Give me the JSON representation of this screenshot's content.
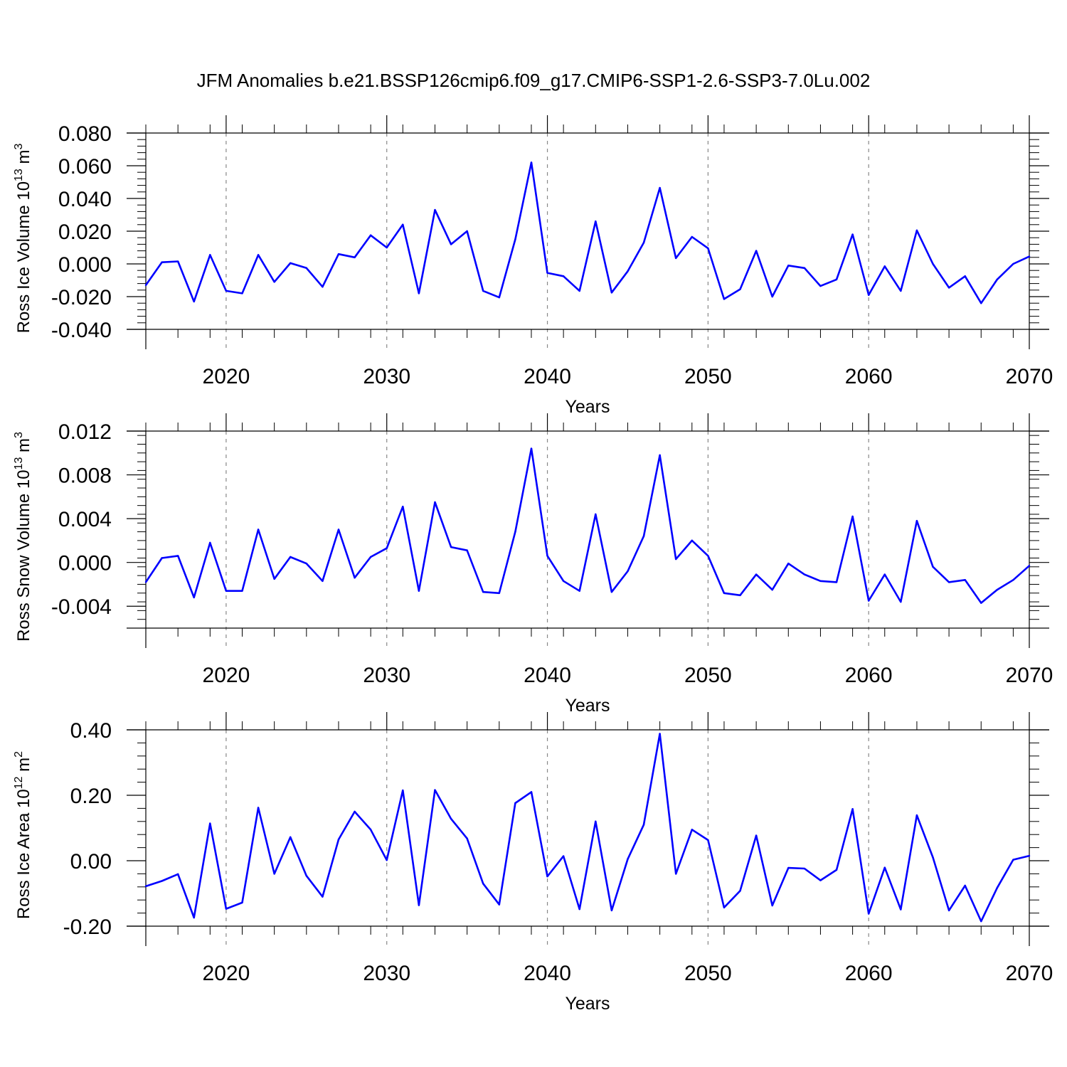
{
  "title": "JFM Anomalies b.e21.BSSP126cmip6.f09_g17.CMIP6-SSP1-2.6-SSP3-7.0Lu.002",
  "colors": {
    "series": "#0000ff",
    "axis": "#000000",
    "grid": "#888888"
  },
  "chart_data": [
    {
      "type": "line",
      "ylabel": "Ross Ice Volume 10",
      "ylabel_exp": "13",
      "ylabel_unit": " m",
      "ylabel_unit_exp": "3",
      "xlabel": "Years",
      "xlim": [
        2015,
        2070
      ],
      "ylim": [
        -0.04,
        0.08
      ],
      "yticks": [
        -0.04,
        -0.02,
        0.0,
        0.02,
        0.04,
        0.06,
        0.08
      ],
      "ytick_labels": [
        "-0.040",
        "-0.020",
        "0.000",
        "0.020",
        "0.040",
        "0.060",
        "0.080"
      ],
      "xticks": [
        2020,
        2030,
        2040,
        2050,
        2060,
        2070
      ],
      "xtick_labels": [
        "2020",
        "2030",
        "2040",
        "2050",
        "2060",
        "2070"
      ],
      "grid": "vertical dashed at major x ticks",
      "x": [
        2015,
        2016,
        2017,
        2018,
        2019,
        2020,
        2021,
        2022,
        2023,
        2024,
        2025,
        2026,
        2027,
        2028,
        2029,
        2030,
        2031,
        2032,
        2033,
        2034,
        2035,
        2036,
        2037,
        2038,
        2039,
        2040,
        2041,
        2042,
        2043,
        2044,
        2045,
        2046,
        2047,
        2048,
        2049,
        2050,
        2051,
        2052,
        2053,
        2054,
        2055,
        2056,
        2057,
        2058,
        2059,
        2060,
        2061,
        2062,
        2063,
        2064,
        2065,
        2066,
        2067,
        2068,
        2069,
        2070
      ],
      "values": [
        -0.013,
        0.001,
        0.0015,
        -0.023,
        0.0055,
        -0.0165,
        -0.018,
        0.0055,
        -0.011,
        0.0005,
        -0.0025,
        -0.014,
        0.006,
        0.004,
        0.0175,
        0.01,
        0.024,
        -0.018,
        0.033,
        0.012,
        0.02,
        -0.0165,
        -0.0205,
        0.015,
        0.062,
        -0.0055,
        -0.0075,
        -0.0165,
        0.026,
        -0.0175,
        -0.0045,
        0.013,
        0.0465,
        0.0035,
        0.0165,
        0.0095,
        -0.0215,
        -0.0155,
        0.008,
        -0.02,
        -0.001,
        -0.0025,
        -0.0135,
        -0.0095,
        0.018,
        -0.019,
        -0.0015,
        -0.0165,
        0.0205,
        0.0,
        -0.0145,
        -0.0075,
        -0.024,
        -0.0095,
        0.0,
        0.0045
      ]
    },
    {
      "type": "line",
      "ylabel": "Ross Snow Volume 10",
      "ylabel_exp": "13",
      "ylabel_unit": " m",
      "ylabel_unit_exp": "3",
      "xlabel": "Years",
      "xlim": [
        2015,
        2070
      ],
      "ylim": [
        -0.006,
        0.012
      ],
      "yticks": [
        -0.004,
        0.0,
        0.004,
        0.008,
        0.012
      ],
      "ytick_labels": [
        "-0.004",
        "0.000",
        "0.004",
        "0.008",
        "0.012"
      ],
      "xticks": [
        2020,
        2030,
        2040,
        2050,
        2060,
        2070
      ],
      "xtick_labels": [
        "2020",
        "2030",
        "2040",
        "2050",
        "2060",
        "2070"
      ],
      "grid": "vertical dashed at major x ticks",
      "x": [
        2015,
        2016,
        2017,
        2018,
        2019,
        2020,
        2021,
        2022,
        2023,
        2024,
        2025,
        2026,
        2027,
        2028,
        2029,
        2030,
        2031,
        2032,
        2033,
        2034,
        2035,
        2036,
        2037,
        2038,
        2039,
        2040,
        2041,
        2042,
        2043,
        2044,
        2045,
        2046,
        2047,
        2048,
        2049,
        2050,
        2051,
        2052,
        2053,
        2054,
        2055,
        2056,
        2057,
        2058,
        2059,
        2060,
        2061,
        2062,
        2063,
        2064,
        2065,
        2066,
        2067,
        2068,
        2069,
        2070
      ],
      "values": [
        -0.0018,
        0.0004,
        0.0006,
        -0.0032,
        0.0018,
        -0.0026,
        -0.0026,
        0.003,
        -0.0015,
        0.0005,
        -0.0001,
        -0.0017,
        0.003,
        -0.0014,
        0.0005,
        0.0013,
        0.0051,
        -0.0026,
        0.0055,
        0.0014,
        0.0011,
        -0.0027,
        -0.0028,
        0.0028,
        0.0104,
        0.0006,
        -0.0017,
        -0.0026,
        0.0044,
        -0.0027,
        -0.0008,
        0.0024,
        0.0098,
        0.0003,
        0.002,
        0.0006,
        -0.0028,
        -0.003,
        -0.0011,
        -0.0025,
        -0.0001,
        -0.0011,
        -0.0017,
        -0.0018,
        0.0042,
        -0.0035,
        -0.0011,
        -0.0036,
        0.0038,
        -0.0004,
        -0.0018,
        -0.0016,
        -0.0037,
        -0.0025,
        -0.0016,
        -0.0003
      ]
    },
    {
      "type": "line",
      "ylabel": "Ross Ice Area 10",
      "ylabel_exp": "12",
      "ylabel_unit": " m",
      "ylabel_unit_exp": "2",
      "xlabel": "Years",
      "xlim": [
        2015,
        2070
      ],
      "ylim": [
        -0.2,
        0.4
      ],
      "yticks": [
        -0.2,
        0.0,
        0.2,
        0.4
      ],
      "ytick_labels": [
        "-0.20",
        "0.00",
        "0.20",
        "0.40"
      ],
      "xticks": [
        2020,
        2030,
        2040,
        2050,
        2060,
        2070
      ],
      "xtick_labels": [
        "2020",
        "2030",
        "2040",
        "2050",
        "2060",
        "2070"
      ],
      "grid": "vertical dashed at major x ticks",
      "x": [
        2015,
        2016,
        2017,
        2018,
        2019,
        2020,
        2021,
        2022,
        2023,
        2024,
        2025,
        2026,
        2027,
        2028,
        2029,
        2030,
        2031,
        2032,
        2033,
        2034,
        2035,
        2036,
        2037,
        2038,
        2039,
        2040,
        2041,
        2042,
        2043,
        2044,
        2045,
        2046,
        2047,
        2048,
        2049,
        2050,
        2051,
        2052,
        2053,
        2054,
        2055,
        2056,
        2057,
        2058,
        2059,
        2060,
        2061,
        2062,
        2063,
        2064,
        2065,
        2066,
        2067,
        2068,
        2069,
        2070
      ],
      "values": [
        -0.078,
        -0.062,
        -0.041,
        -0.174,
        0.114,
        -0.147,
        -0.128,
        0.162,
        -0.04,
        0.072,
        -0.046,
        -0.11,
        0.065,
        0.15,
        0.095,
        0.002,
        0.215,
        -0.136,
        0.216,
        0.128,
        0.068,
        -0.07,
        -0.134,
        0.176,
        0.21,
        -0.048,
        0.014,
        -0.148,
        0.12,
        -0.152,
        0.005,
        0.11,
        0.388,
        -0.04,
        0.095,
        0.063,
        -0.143,
        -0.092,
        0.077,
        -0.137,
        -0.022,
        -0.024,
        -0.06,
        -0.028,
        0.158,
        -0.162,
        -0.021,
        -0.149,
        0.139,
        0.01,
        -0.152,
        -0.076,
        -0.185,
        -0.083,
        0.003,
        0.015
      ]
    }
  ]
}
